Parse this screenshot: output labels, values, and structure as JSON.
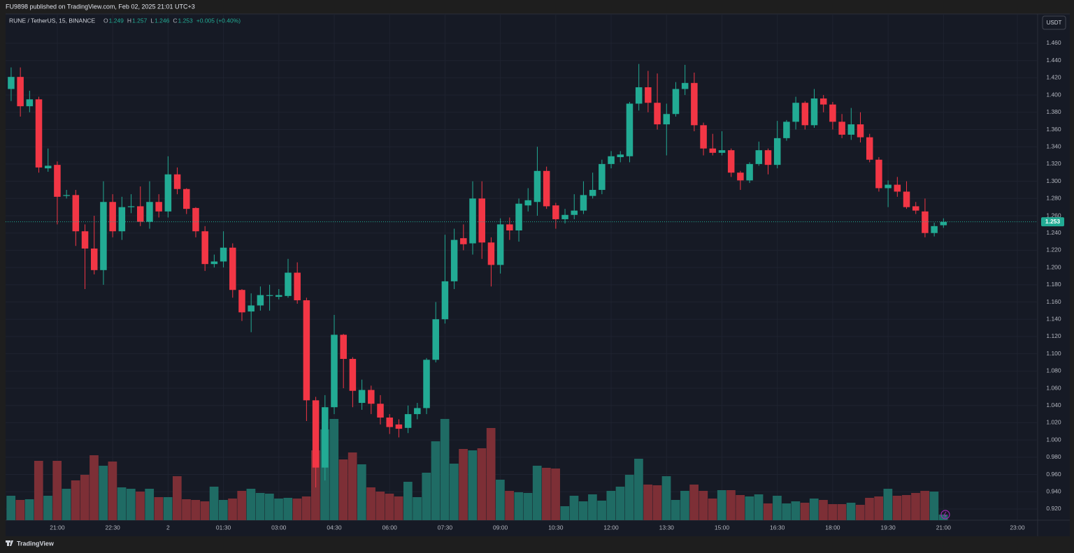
{
  "header": {
    "published": "FU9898 published on TradingView.com, Feb 02, 2025 21:01 UTC+3"
  },
  "footer": {
    "brand": "TradingView"
  },
  "chart_data": {
    "type": "candlestick",
    "symbol": "RUNE / TetherUS, 15, BINANCE",
    "ohlc_labels": [
      "O",
      "H",
      "L",
      "C"
    ],
    "change_label": "+0.005 (+0.40%)",
    "currency": "USDT",
    "up_color": "#22ab94",
    "down_color": "#f23645",
    "volume_up_color": "#1f6b64",
    "volume_down_color": "#7d2f36",
    "grid": true,
    "open": [
      1.407,
      1.421,
      1.387,
      1.395,
      1.315,
      1.319,
      1.283,
      1.284,
      1.242,
      1.222,
      1.197,
      1.276,
      1.242,
      1.27,
      1.271,
      1.253,
      1.276,
      1.265,
      1.308,
      1.291,
      1.269,
      1.242,
      1.204,
      1.207,
      1.223,
      1.174,
      1.149,
      1.156,
      1.167,
      1.166,
      1.167,
      1.194,
      1.162,
      1.046,
      0.968,
      1.038,
      1.122,
      1.094,
      1.043,
      1.058,
      1.042,
      1.026,
      1.018,
      1.014,
      1.03,
      1.037,
      1.093,
      1.14,
      1.184,
      1.234,
      1.228,
      1.28,
      1.229,
      1.203,
      1.25,
      1.243,
      1.272,
      1.276,
      1.312,
      1.272,
      1.256,
      1.261,
      1.266,
      1.283,
      1.29,
      1.32,
      1.328,
      1.329,
      1.39,
      1.409,
      1.391,
      1.366,
      1.378,
      1.407,
      1.414,
      1.365,
      1.338,
      1.333,
      1.336,
      1.31,
      1.301,
      1.32,
      1.336,
      1.319,
      1.35,
      1.369,
      1.391,
      1.365,
      1.396,
      1.389,
      1.369,
      1.354,
      1.366,
      1.351,
      1.325,
      1.292,
      1.296,
      1.288,
      1.271,
      1.265,
      1.24,
      1.249
    ],
    "high": [
      1.432,
      1.432,
      1.405,
      1.398,
      1.338,
      1.323,
      1.29,
      1.29,
      1.25,
      1.26,
      1.3,
      1.285,
      1.282,
      1.285,
      1.294,
      1.3,
      1.285,
      1.329,
      1.316,
      1.292,
      1.27,
      1.248,
      1.215,
      1.242,
      1.228,
      1.175,
      1.17,
      1.178,
      1.18,
      1.175,
      1.21,
      1.206,
      1.165,
      1.05,
      1.052,
      1.145,
      1.123,
      1.096,
      1.07,
      1.063,
      1.052,
      1.03,
      1.024,
      1.04,
      1.043,
      1.095,
      1.16,
      1.238,
      1.245,
      1.25,
      1.3,
      1.3,
      1.235,
      1.257,
      1.258,
      1.28,
      1.292,
      1.34,
      1.317,
      1.275,
      1.268,
      1.285,
      1.3,
      1.31,
      1.325,
      1.335,
      1.335,
      1.392,
      1.436,
      1.428,
      1.425,
      1.39,
      1.415,
      1.435,
      1.426,
      1.368,
      1.355,
      1.358,
      1.338,
      1.312,
      1.322,
      1.346,
      1.338,
      1.37,
      1.371,
      1.398,
      1.393,
      1.407,
      1.4,
      1.392,
      1.378,
      1.385,
      1.38,
      1.355,
      1.328,
      1.301,
      1.305,
      1.3,
      1.276,
      1.28,
      1.252,
      1.257
    ],
    "low": [
      1.393,
      1.375,
      1.38,
      1.31,
      1.311,
      1.25,
      1.28,
      1.225,
      1.175,
      1.192,
      1.18,
      1.235,
      1.232,
      1.263,
      1.248,
      1.245,
      1.258,
      1.258,
      1.285,
      1.262,
      1.235,
      1.196,
      1.2,
      1.2,
      1.165,
      1.138,
      1.125,
      1.15,
      1.15,
      1.163,
      1.165,
      1.158,
      1.022,
      0.945,
      0.953,
      1.03,
      1.06,
      1.038,
      1.035,
      1.03,
      1.018,
      1.007,
      1.003,
      1.008,
      1.024,
      1.03,
      1.09,
      1.135,
      1.175,
      1.22,
      1.215,
      1.21,
      1.178,
      1.193,
      1.232,
      1.23,
      1.265,
      1.26,
      1.268,
      1.245,
      1.251,
      1.256,
      1.262,
      1.28,
      1.285,
      1.315,
      1.322,
      1.322,
      1.382,
      1.38,
      1.36,
      1.33,
      1.375,
      1.4,
      1.358,
      1.33,
      1.33,
      1.33,
      1.305,
      1.29,
      1.298,
      1.318,
      1.308,
      1.315,
      1.347,
      1.36,
      1.36,
      1.362,
      1.38,
      1.36,
      1.35,
      1.348,
      1.345,
      1.322,
      1.288,
      1.27,
      1.282,
      1.268,
      1.262,
      1.235,
      1.236,
      1.246
    ],
    "close": [
      1.421,
      1.387,
      1.395,
      1.316,
      1.318,
      1.282,
      1.284,
      1.242,
      1.222,
      1.197,
      1.276,
      1.242,
      1.27,
      1.271,
      1.253,
      1.276,
      1.265,
      1.308,
      1.291,
      1.268,
      1.242,
      1.204,
      1.207,
      1.223,
      1.174,
      1.148,
      1.156,
      1.168,
      1.168,
      1.168,
      1.194,
      1.162,
      1.046,
      0.968,
      1.038,
      1.122,
      1.094,
      1.057,
      1.058,
      1.042,
      1.026,
      1.015,
      1.013,
      1.03,
      1.037,
      1.093,
      1.14,
      1.184,
      1.232,
      1.227,
      1.28,
      1.229,
      1.203,
      1.25,
      1.243,
      1.274,
      1.278,
      1.312,
      1.271,
      1.256,
      1.261,
      1.266,
      1.284,
      1.29,
      1.32,
      1.329,
      1.331,
      1.39,
      1.409,
      1.391,
      1.366,
      1.378,
      1.407,
      1.414,
      1.365,
      1.338,
      1.333,
      1.336,
      1.31,
      1.301,
      1.32,
      1.336,
      1.319,
      1.35,
      1.369,
      1.391,
      1.365,
      1.396,
      1.389,
      1.369,
      1.354,
      1.366,
      1.351,
      1.325,
      1.292,
      1.296,
      1.288,
      1.27,
      1.266,
      1.24,
      1.248,
      1.253
    ],
    "volume": [
      35,
      29,
      30,
      85,
      35,
      85,
      45,
      57,
      65,
      93,
      78,
      84,
      47,
      45,
      41,
      45,
      33,
      33,
      63,
      30,
      29,
      27,
      48,
      29,
      31,
      42,
      45,
      39,
      38,
      31,
      32,
      31,
      34,
      100,
      130,
      145,
      87,
      97,
      80,
      47,
      41,
      38,
      34,
      55,
      33,
      68,
      113,
      145,
      81,
      102,
      100,
      103,
      132,
      58,
      42,
      40,
      39,
      78,
      75,
      74,
      20,
      35,
      27,
      37,
      28,
      42,
      48,
      65,
      88,
      51,
      50,
      63,
      29,
      42,
      51,
      42,
      31,
      43,
      43,
      36,
      34,
      37,
      24,
      35,
      24,
      27,
      25,
      31,
      29,
      23,
      23,
      25,
      22,
      32,
      34,
      45,
      35,
      36,
      39,
      42,
      41,
      8
    ],
    "vlim": [
      0,
      725
    ],
    "xlim": [
      -0.6,
      111.2
    ],
    "xticks": [
      {
        "value": 5,
        "label": "21:00"
      },
      {
        "value": 11,
        "label": "22:30"
      },
      {
        "value": 17,
        "label": "2"
      },
      {
        "value": 23,
        "label": "01:30"
      },
      {
        "value": 29,
        "label": "03:00"
      },
      {
        "value": 35,
        "label": "04:30"
      },
      {
        "value": 41,
        "label": "06:00"
      },
      {
        "value": 47,
        "label": "07:30"
      },
      {
        "value": 53,
        "label": "09:00"
      },
      {
        "value": 59,
        "label": "10:30"
      },
      {
        "value": 65,
        "label": "12:00"
      },
      {
        "value": 71,
        "label": "13:30"
      },
      {
        "value": 77,
        "label": "15:00"
      },
      {
        "value": 83,
        "label": "16:30"
      },
      {
        "value": 89,
        "label": "18:00"
      },
      {
        "value": 95,
        "label": "19:30"
      },
      {
        "value": 101,
        "label": "21:00"
      },
      {
        "value": 109,
        "label": "23:00"
      }
    ],
    "ylim": [
      0.907,
      1.494
    ],
    "yticks": [
      {
        "value": 0.92,
        "label": "0.920"
      },
      {
        "value": 0.94,
        "label": "0.940"
      },
      {
        "value": 0.96,
        "label": "0.960"
      },
      {
        "value": 0.98,
        "label": "0.980"
      },
      {
        "value": 1.0,
        "label": "1.000"
      },
      {
        "value": 1.02,
        "label": "1.020"
      },
      {
        "value": 1.04,
        "label": "1.040"
      },
      {
        "value": 1.06,
        "label": "1.060"
      },
      {
        "value": 1.08,
        "label": "1.080"
      },
      {
        "value": 1.1,
        "label": "1.100"
      },
      {
        "value": 1.12,
        "label": "1.120"
      },
      {
        "value": 1.14,
        "label": "1.140"
      },
      {
        "value": 1.16,
        "label": "1.160"
      },
      {
        "value": 1.18,
        "label": "1.180"
      },
      {
        "value": 1.2,
        "label": "1.200"
      },
      {
        "value": 1.22,
        "label": "1.220"
      },
      {
        "value": 1.24,
        "label": "1.240"
      },
      {
        "value": 1.26,
        "label": "1.260"
      },
      {
        "value": 1.28,
        "label": "1.280"
      },
      {
        "value": 1.3,
        "label": "1.300"
      },
      {
        "value": 1.32,
        "label": "1.320"
      },
      {
        "value": 1.34,
        "label": "1.340"
      },
      {
        "value": 1.36,
        "label": "1.360"
      },
      {
        "value": 1.38,
        "label": "1.380"
      },
      {
        "value": 1.4,
        "label": "1.400"
      },
      {
        "value": 1.42,
        "label": "1.420"
      },
      {
        "value": 1.44,
        "label": "1.440"
      },
      {
        "value": 1.46,
        "label": "1.460"
      }
    ]
  }
}
